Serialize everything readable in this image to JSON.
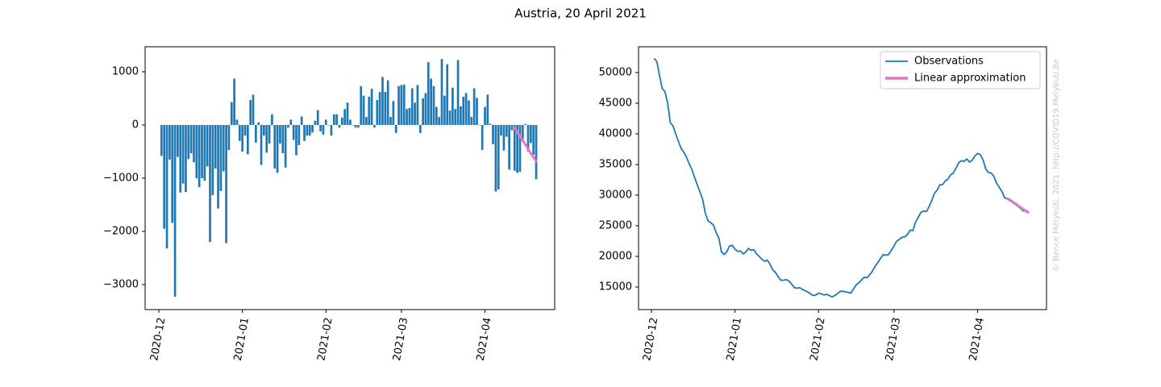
{
  "title": "Austria, 20 April 2021",
  "credit": "© Bence Mélykúti, 2021. http://COVID19.Melykuti.Be",
  "chart_data": [
    {
      "type": "bar",
      "categories": [
        "2020-12",
        null,
        null,
        null,
        null,
        null,
        null,
        null,
        null,
        null,
        null,
        null,
        null,
        null,
        null,
        null,
        null,
        null,
        null,
        null,
        null,
        null,
        null,
        null,
        null,
        null,
        null,
        null,
        null,
        null,
        null,
        "2021-01",
        null,
        null,
        null,
        null,
        null,
        null,
        null,
        null,
        null,
        null,
        null,
        null,
        null,
        null,
        null,
        null,
        null,
        null,
        null,
        null,
        null,
        null,
        null,
        null,
        null,
        null,
        null,
        null,
        null,
        null,
        "2021-02",
        null,
        null,
        null,
        null,
        null,
        null,
        null,
        null,
        null,
        null,
        null,
        null,
        null,
        null,
        null,
        null,
        null,
        null,
        null,
        null,
        null,
        null,
        null,
        null,
        null,
        null,
        null,
        "2021-03",
        null,
        null,
        null,
        null,
        null,
        null,
        null,
        null,
        null,
        null,
        null,
        null,
        null,
        null,
        null,
        null,
        null,
        null,
        null,
        null,
        null,
        null,
        null,
        null,
        null,
        null,
        null,
        null,
        null,
        null,
        "2021-04",
        null,
        null,
        null,
        null,
        null,
        null,
        null,
        null,
        null,
        null,
        null,
        null,
        null,
        null,
        null,
        null,
        null,
        null,
        null
      ],
      "color": "#1f77b4",
      "values": [
        null,
        -580,
        -1950,
        -2320,
        -650,
        -1840,
        -3230,
        -600,
        -1270,
        -1100,
        -1260,
        -640,
        -530,
        -700,
        -1000,
        -1170,
        -1000,
        -1050,
        -780,
        -2200,
        -1320,
        -820,
        -1570,
        -1240,
        -870,
        -2220,
        -470,
        430,
        870,
        100,
        -300,
        -500,
        -200,
        -550,
        470,
        570,
        -330,
        50,
        -750,
        -200,
        -520,
        -350,
        200,
        -820,
        -900,
        -350,
        -530,
        -800,
        -50,
        100,
        -280,
        -570,
        -380,
        160,
        -300,
        -200,
        -200,
        -140,
        80,
        280,
        -120,
        -180,
        100,
        0,
        -200,
        200,
        200,
        -50,
        140,
        300,
        420,
        100,
        0,
        -50,
        -50,
        730,
        550,
        150,
        530,
        680,
        -50,
        470,
        620,
        900,
        620,
        840,
        150,
        450,
        -150,
        730,
        750,
        760,
        300,
        320,
        690,
        420,
        750,
        -150,
        500,
        600,
        1180,
        870,
        730,
        340,
        150,
        1240,
        550,
        1140,
        270,
        700,
        300,
        1220,
        350,
        530,
        600,
        460,
        150,
        690,
        510,
        0,
        -470,
        340,
        570,
        20,
        -360,
        -1250,
        -1210,
        -200,
        -480,
        -220,
        -840,
        -100,
        -860,
        -900,
        -880,
        -300,
        20,
        -500,
        -340,
        -560,
        -1020
      ],
      "fit": {
        "color": "#e377c2",
        "width": 3,
        "values": [
          null,
          null,
          null,
          null,
          null,
          null,
          null,
          null,
          null,
          null,
          null,
          null,
          null,
          null,
          null,
          null,
          null,
          null,
          null,
          null,
          null,
          null,
          null,
          null,
          null,
          null,
          null,
          null,
          null,
          null,
          null,
          null,
          null,
          null,
          null,
          null,
          null,
          null,
          null,
          null,
          null,
          null,
          null,
          null,
          null,
          null,
          null,
          null,
          null,
          null,
          null,
          null,
          null,
          null,
          null,
          null,
          null,
          null,
          null,
          null,
          null,
          null,
          null,
          null,
          null,
          null,
          null,
          null,
          null,
          null,
          null,
          null,
          null,
          null,
          null,
          null,
          null,
          null,
          null,
          null,
          null,
          null,
          null,
          null,
          null,
          null,
          null,
          null,
          null,
          null,
          null,
          null,
          null,
          null,
          null,
          null,
          null,
          null,
          null,
          null,
          null,
          null,
          null,
          null,
          null,
          null,
          null,
          null,
          null,
          null,
          null,
          null,
          null,
          null,
          null,
          null,
          null,
          null,
          null,
          null,
          null,
          null,
          null,
          null,
          null,
          null,
          null,
          null,
          null,
          null,
          null,
          null,
          -50,
          -130,
          -210,
          -290,
          -370,
          -450,
          -530,
          -610,
          -680
        ]
      },
      "ylim": [
        -3470,
        1470
      ],
      "yticks": [
        {
          "value": -3000,
          "label": "−3000"
        },
        {
          "value": -2000,
          "label": "−2000"
        },
        {
          "value": -1000,
          "label": "−1000"
        },
        0,
        1000
      ]
    },
    {
      "type": "line",
      "categories": [
        "2020-12",
        null,
        null,
        null,
        null,
        null,
        null,
        null,
        null,
        null,
        null,
        null,
        null,
        null,
        null,
        null,
        null,
        null,
        null,
        null,
        null,
        null,
        null,
        null,
        null,
        null,
        null,
        null,
        null,
        null,
        null,
        "2021-01",
        null,
        null,
        null,
        null,
        null,
        null,
        null,
        null,
        null,
        null,
        null,
        null,
        null,
        null,
        null,
        null,
        null,
        null,
        null,
        null,
        null,
        null,
        null,
        null,
        null,
        null,
        null,
        null,
        null,
        null,
        "2021-02",
        null,
        null,
        null,
        null,
        null,
        null,
        null,
        null,
        null,
        null,
        null,
        null,
        null,
        null,
        null,
        null,
        null,
        null,
        null,
        null,
        null,
        null,
        null,
        null,
        null,
        null,
        null,
        "2021-03",
        null,
        null,
        null,
        null,
        null,
        null,
        null,
        null,
        null,
        null,
        null,
        null,
        null,
        null,
        null,
        null,
        null,
        null,
        null,
        null,
        null,
        null,
        null,
        null,
        null,
        null,
        null,
        null,
        null,
        null,
        "2021-04",
        null,
        null,
        null,
        null,
        null,
        null,
        null,
        null,
        null,
        null,
        null,
        null,
        null,
        null,
        null,
        null,
        null,
        null,
        null
      ],
      "series": [
        {
          "name": "Observations",
          "color": "#1f77b4",
          "width": 1.8,
          "values": [
            null,
            52300,
            51800,
            49500,
            47400,
            46900,
            45000,
            41800,
            41300,
            40000,
            38800,
            37600,
            37000,
            36200,
            35100,
            34200,
            32900,
            31700,
            30500,
            29300,
            27000,
            25800,
            25500,
            25100,
            23900,
            23000,
            20700,
            20300,
            20800,
            21700,
            21800,
            21200,
            20800,
            20900,
            20400,
            20700,
            21300,
            21000,
            21100,
            20400,
            20000,
            19500,
            19200,
            19400,
            18700,
            17800,
            17400,
            16700,
            16100,
            16100,
            16200,
            16000,
            15500,
            14900,
            14800,
            14900,
            14600,
            14400,
            14200,
            13900,
            13600,
            13700,
            14000,
            13900,
            13700,
            13800,
            13600,
            13400,
            13600,
            13900,
            14300,
            14300,
            14200,
            14100,
            14000,
            14700,
            15400,
            15700,
            16200,
            16600,
            16500,
            17000,
            17600,
            18400,
            19000,
            19700,
            20300,
            20200,
            20300,
            21000,
            21700,
            22500,
            22800,
            23100,
            23200,
            23600,
            24300,
            24200,
            25600,
            26400,
            27200,
            27400,
            27300,
            28100,
            29100,
            30300,
            30800,
            31700,
            31700,
            32300,
            32600,
            33300,
            33600,
            34400,
            35300,
            35600,
            35500,
            35900,
            35400,
            35700,
            36400,
            36800,
            36600,
            35800,
            34300,
            33700,
            33600,
            33100,
            32000,
            31300,
            30600,
            29600,
            29400,
            29200,
            28900,
            28500,
            28200,
            27800,
            27400,
            27500,
            27100
          ]
        },
        {
          "name": "Linear approximation",
          "color": "#e377c2",
          "width": 3.5,
          "values": [
            null,
            null,
            null,
            null,
            null,
            null,
            null,
            null,
            null,
            null,
            null,
            null,
            null,
            null,
            null,
            null,
            null,
            null,
            null,
            null,
            null,
            null,
            null,
            null,
            null,
            null,
            null,
            null,
            null,
            null,
            null,
            null,
            null,
            null,
            null,
            null,
            null,
            null,
            null,
            null,
            null,
            null,
            null,
            null,
            null,
            null,
            null,
            null,
            null,
            null,
            null,
            null,
            null,
            null,
            null,
            null,
            null,
            null,
            null,
            null,
            null,
            null,
            null,
            null,
            null,
            null,
            null,
            null,
            null,
            null,
            null,
            null,
            null,
            null,
            null,
            null,
            null,
            null,
            null,
            null,
            null,
            null,
            null,
            null,
            null,
            null,
            null,
            null,
            null,
            null,
            null,
            null,
            null,
            null,
            null,
            null,
            null,
            null,
            null,
            null,
            null,
            null,
            null,
            null,
            null,
            null,
            null,
            null,
            null,
            null,
            null,
            null,
            null,
            null,
            null,
            null,
            null,
            null,
            null,
            null,
            null,
            null,
            null,
            null,
            null,
            null,
            null,
            null,
            null,
            null,
            null,
            null,
            29500,
            29200,
            28900,
            28600,
            28300,
            28000,
            27700,
            27400,
            27100
          ]
        }
      ],
      "ylim": [
        11316,
        54210
      ],
      "yticks": [
        15000,
        20000,
        25000,
        30000,
        35000,
        40000,
        45000,
        50000
      ],
      "legend": "upper right"
    }
  ]
}
